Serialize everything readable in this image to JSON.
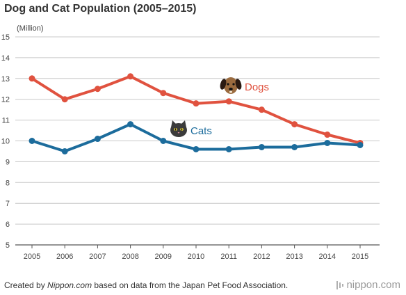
{
  "chart_data": {
    "type": "line",
    "title": "Dog and Cat Population (2005–2015)",
    "unit_label": "(Million)",
    "xlabel": "",
    "ylabel": "",
    "x": [
      "2005",
      "2006",
      "2007",
      "2008",
      "2009",
      "2010",
      "2011",
      "2012",
      "2013",
      "2014",
      "2015"
    ],
    "ylim": [
      5,
      15
    ],
    "yticks": [
      5,
      6,
      7,
      8,
      9,
      10,
      11,
      12,
      13,
      14,
      15
    ],
    "grid": true,
    "series": [
      {
        "name": "Dogs",
        "color": "#e0523f",
        "icon": "dog-face-icon",
        "values": [
          13.0,
          12.0,
          12.5,
          13.1,
          12.3,
          11.8,
          11.9,
          11.5,
          10.8,
          10.3,
          9.9
        ]
      },
      {
        "name": "Cats",
        "color": "#1c6c9c",
        "icon": "cat-face-icon",
        "values": [
          10.0,
          9.5,
          10.1,
          10.8,
          10.0,
          9.6,
          9.6,
          9.7,
          9.7,
          9.9,
          9.8
        ]
      }
    ]
  },
  "footer": {
    "prefix": "Created by ",
    "source_name": "Nippon.com",
    "suffix": " based on data from the Japan Pet Food Association."
  },
  "brand": {
    "name": "nippon.com",
    "icon": "nippon-logo-icon"
  }
}
